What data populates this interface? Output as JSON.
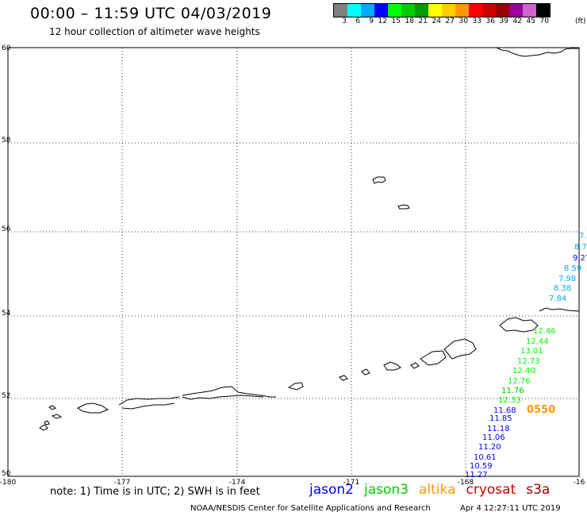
{
  "header": {
    "title": "00:00 – 11:59 UTC 04/03/2019",
    "subtitle": "12 hour collection of altimeter wave heights"
  },
  "colorbar": {
    "units": "(ft)",
    "labels": [
      "3",
      "6",
      "9",
      "12",
      "15",
      "18",
      "21",
      "24",
      "27",
      "30",
      "33",
      "36",
      "39",
      "42",
      "45",
      "70"
    ],
    "colors": [
      "#808080",
      "#00ffff",
      "#00aaff",
      "#0000ff",
      "#00ff00",
      "#00cc00",
      "#009900",
      "#ffff00",
      "#ffcc00",
      "#ff9900",
      "#ff0000",
      "#cc0000",
      "#990000",
      "#990099",
      "#cc66cc",
      "#000000"
    ]
  },
  "axes": {
    "lat_labels": [
      "60",
      "58",
      "56",
      "54",
      "52",
      "50"
    ],
    "lon_labels": [
      "-180",
      "-177",
      "-174",
      "-171",
      "-168",
      "-16"
    ]
  },
  "observations": [
    {
      "value": "7.",
      "color": "#00aaff"
    },
    {
      "value": "8.7",
      "color": "#00aaff"
    },
    {
      "value": "9.27",
      "color": "#0000ff"
    },
    {
      "value": "8.59",
      "color": "#00aaff"
    },
    {
      "value": "7.98",
      "color": "#00aaff"
    },
    {
      "value": "8.38",
      "color": "#00aaff"
    },
    {
      "value": "7.84",
      "color": "#00aaff"
    },
    {
      "value": "12.46",
      "color": "#00ff00"
    },
    {
      "value": "12.44",
      "color": "#00ff00"
    },
    {
      "value": "13.01",
      "color": "#00ff00"
    },
    {
      "value": "12.73",
      "color": "#00ff00"
    },
    {
      "value": "12.40",
      "color": "#00ff00"
    },
    {
      "value": "12.76",
      "color": "#00ff00"
    },
    {
      "value": "11.76",
      "color": "#00cc00"
    },
    {
      "value": "12.33",
      "color": "#00ff00"
    },
    {
      "value": "11.68",
      "color": "#0000ff"
    },
    {
      "value": "11.85",
      "color": "#0000ff"
    },
    {
      "value": "11.18",
      "color": "#0000ff"
    },
    {
      "value": "11.06",
      "color": "#0000ff"
    },
    {
      "value": "11.20",
      "color": "#0000ff"
    },
    {
      "value": "10.61",
      "color": "#0000ff"
    },
    {
      "value": "10.59",
      "color": "#0000ff"
    },
    {
      "value": "11.27",
      "color": "#0000ff"
    }
  ],
  "pass_time": {
    "value": "0550",
    "color": "#ff9900"
  },
  "footer": {
    "note": "note: 1) Time is in UTC; 2) SWH is in feet",
    "legend": [
      {
        "name": "jason2",
        "color": "#0000ff"
      },
      {
        "name": "jason3",
        "color": "#00cc00"
      },
      {
        "name": "altika",
        "color": "#ff9900"
      },
      {
        "name": "cryosat",
        "color": "#cc0000"
      },
      {
        "name": "s3a",
        "color": "#990000"
      }
    ],
    "credit": "NOAA/NESDIS Center for Satellite Applications and Research",
    "timestamp": "Apr  4 12:27:11 UTC 2019"
  }
}
